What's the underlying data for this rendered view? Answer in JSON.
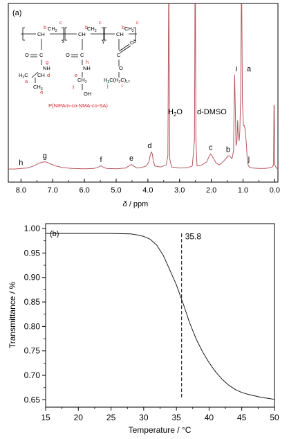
{
  "chart_data": [
    {
      "type": "line",
      "panel_label": "(a)",
      "xlabel_var": "δ",
      "xlabel_unit": " / ppm",
      "x_axis_reversed": true,
      "xlim": [
        8.4,
        -0.1
      ],
      "xticks": [
        8.0,
        7.0,
        6.0,
        5.0,
        4.0,
        3.0,
        2.0,
        1.0,
        0.0
      ],
      "tick_labels": [
        "8.0",
        "7.0",
        "6.0",
        "5.0",
        "4.0",
        "3.0",
        "2.0",
        "1.0",
        "0.0"
      ],
      "y_axis_shown": false,
      "line_color": "#b5565e",
      "spectrum": [
        [
          8.4,
          0.02
        ],
        [
          8.2,
          0.02
        ],
        [
          8.0,
          0.025
        ],
        [
          7.8,
          0.03
        ],
        [
          7.6,
          0.05
        ],
        [
          7.45,
          0.075
        ],
        [
          7.3,
          0.09
        ],
        [
          7.2,
          0.09
        ],
        [
          7.1,
          0.075
        ],
        [
          6.9,
          0.05
        ],
        [
          6.7,
          0.035
        ],
        [
          6.4,
          0.025
        ],
        [
          6.0,
          0.022
        ],
        [
          5.7,
          0.025
        ],
        [
          5.55,
          0.04
        ],
        [
          5.48,
          0.052
        ],
        [
          5.42,
          0.04
        ],
        [
          5.3,
          0.025
        ],
        [
          5.0,
          0.022
        ],
        [
          4.7,
          0.03
        ],
        [
          4.6,
          0.05
        ],
        [
          4.52,
          0.065
        ],
        [
          4.45,
          0.05
        ],
        [
          4.35,
          0.03
        ],
        [
          4.2,
          0.035
        ],
        [
          4.05,
          0.05
        ],
        [
          3.97,
          0.09
        ],
        [
          3.93,
          0.15
        ],
        [
          3.89,
          0.19
        ],
        [
          3.86,
          0.17
        ],
        [
          3.83,
          0.1
        ],
        [
          3.78,
          0.05
        ],
        [
          3.6,
          0.04
        ],
        [
          3.42,
          0.06
        ],
        [
          3.37,
          0.15
        ],
        [
          3.345,
          1.7
        ],
        [
          3.335,
          1.7
        ],
        [
          3.31,
          0.12
        ],
        [
          3.25,
          0.04
        ],
        [
          3.0,
          0.03
        ],
        [
          2.75,
          0.032
        ],
        [
          2.6,
          0.05
        ],
        [
          2.53,
          0.3
        ],
        [
          2.515,
          1.7
        ],
        [
          2.5,
          1.7
        ],
        [
          2.485,
          0.3
        ],
        [
          2.45,
          0.05
        ],
        [
          2.3,
          0.06
        ],
        [
          2.15,
          0.09
        ],
        [
          2.06,
          0.15
        ],
        [
          2.02,
          0.17
        ],
        [
          1.98,
          0.15
        ],
        [
          1.85,
          0.08
        ],
        [
          1.75,
          0.06
        ],
        [
          1.65,
          0.085
        ],
        [
          1.55,
          0.12
        ],
        [
          1.47,
          0.15
        ],
        [
          1.42,
          0.15
        ],
        [
          1.35,
          0.12
        ],
        [
          1.3,
          0.2
        ],
        [
          1.28,
          0.7
        ],
        [
          1.265,
          0.95
        ],
        [
          1.25,
          0.7
        ],
        [
          1.22,
          0.25
        ],
        [
          1.19,
          0.3
        ],
        [
          1.17,
          0.5
        ],
        [
          1.155,
          0.38
        ],
        [
          1.12,
          0.3
        ],
        [
          1.1,
          0.4
        ],
        [
          1.075,
          0.75
        ],
        [
          1.055,
          1.9
        ],
        [
          1.04,
          1.65
        ],
        [
          1.02,
          0.7
        ],
        [
          0.99,
          0.45
        ],
        [
          0.96,
          0.45
        ],
        [
          0.93,
          0.4
        ],
        [
          0.89,
          0.25
        ],
        [
          0.87,
          0.12
        ],
        [
          0.84,
          0.06
        ],
        [
          0.8,
          0.04
        ],
        [
          0.7,
          0.03
        ],
        [
          0.5,
          0.025
        ],
        [
          0.3,
          0.025
        ],
        [
          0.2,
          0.03
        ],
        [
          0.08,
          0.04
        ],
        [
          0.04,
          0.06
        ],
        [
          0.025,
          0.65
        ],
        [
          0.015,
          0.65
        ],
        [
          0.0,
          0.06
        ],
        [
          -0.05,
          0.03
        ],
        [
          -0.1,
          0.02
        ]
      ],
      "peak_labels": [
        {
          "text": "h",
          "ppm": 8.0
        },
        {
          "text": "g",
          "ppm": 7.25
        },
        {
          "text": "f",
          "ppm": 5.48
        },
        {
          "text": "e",
          "ppm": 4.52
        },
        {
          "text": "d",
          "ppm": 3.9
        },
        {
          "text": "c",
          "ppm": 2.02
        },
        {
          "text": "b",
          "ppm": 1.45
        },
        {
          "text": "i",
          "ppm": 1.14
        },
        {
          "text": "a",
          "ppm": 0.88
        },
        {
          "text": "j",
          "ppm": 0.86
        }
      ],
      "solvent_labels": {
        "water_main": "H",
        "water_sub": "2",
        "water_tail": "O",
        "dmso": "d-DMSO"
      },
      "structure": {
        "caption": "P(NIPAm-co-NMA-co-SA)",
        "sub_x": "x",
        "sub_y": "y",
        "sub_z": "z",
        "ch": "CH",
        "c_o": "C",
        "o": "O",
        "nh": "NH",
        "ch_iso": "CH",
        "ch3": "CH",
        "sub3": "3",
        "h3c_tail": "H",
        "c_ch2": "C",
        "sub2": "2",
        "h3c_chain_a": "H",
        "h3c_chain_b": "C(H",
        "h3c_chain_c": "C)",
        "sub17": "17",
        "oh": "OH",
        "oo": "O",
        "atom_labels": [
          "a",
          "a",
          "b",
          "b",
          "b",
          "c",
          "c",
          "c",
          "d",
          "e",
          "f",
          "g",
          "h",
          "i",
          "j"
        ]
      }
    },
    {
      "type": "line",
      "panel_label": "(b)",
      "xlabel": "Temperature / °C",
      "ylabel": "Transmittance / %",
      "xlim": [
        15,
        50
      ],
      "ylim": [
        0.635,
        1.01
      ],
      "xticks": [
        15,
        20,
        25,
        30,
        35,
        40,
        45,
        50
      ],
      "yticks": [
        0.65,
        0.7,
        0.75,
        0.8,
        0.85,
        0.9,
        0.95,
        1.0
      ],
      "xtick_labels": [
        "15",
        "20",
        "25",
        "30",
        "35",
        "40",
        "45",
        "50"
      ],
      "ytick_labels": [
        "0.65",
        "0.70",
        "0.75",
        "0.80",
        "0.85",
        "0.90",
        "0.95",
        "1.00"
      ],
      "annotation": {
        "text": "35.8",
        "x": 35.8
      },
      "series": [
        {
          "x": [
            15,
            20,
            25,
            28,
            29,
            30,
            31,
            32,
            33,
            34,
            35,
            35.8,
            36,
            37,
            38,
            39,
            40,
            41,
            42,
            43,
            44,
            45,
            46,
            47,
            48,
            49,
            50
          ],
          "y": [
            0.99,
            0.99,
            0.99,
            0.989,
            0.987,
            0.984,
            0.978,
            0.966,
            0.945,
            0.915,
            0.885,
            0.855,
            0.848,
            0.808,
            0.775,
            0.748,
            0.726,
            0.707,
            0.692,
            0.68,
            0.671,
            0.665,
            0.661,
            0.658,
            0.655,
            0.653,
            0.651
          ]
        }
      ]
    }
  ]
}
